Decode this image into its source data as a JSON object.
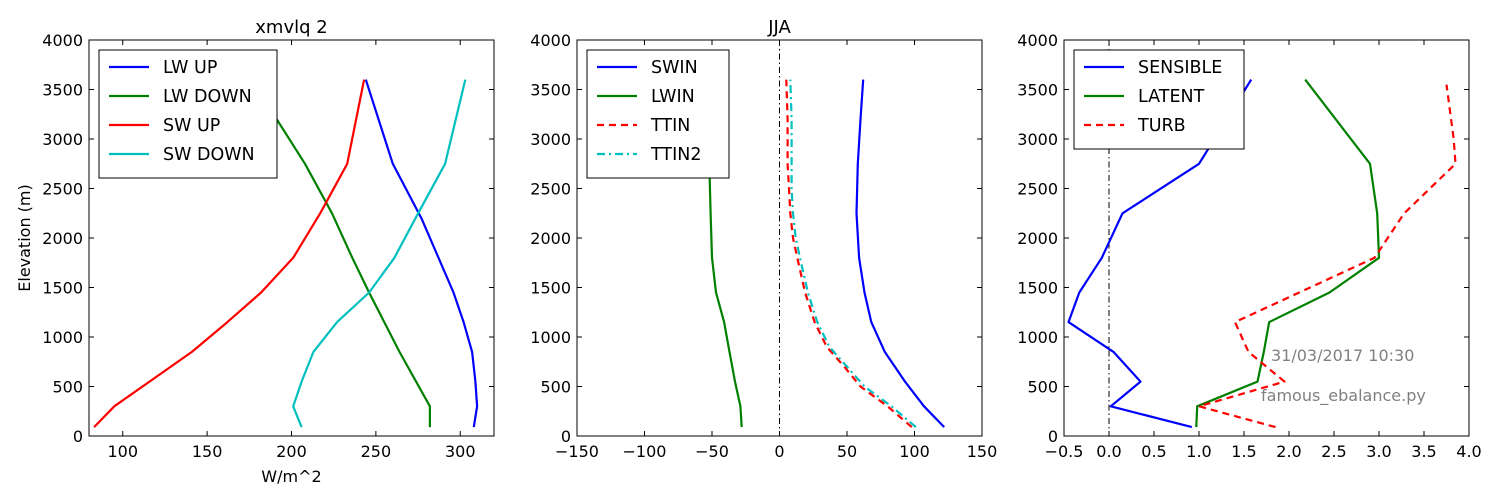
{
  "chart_data": [
    {
      "type": "line",
      "title": "xmvlq 2",
      "xlabel": "W/m^2",
      "ylabel": "Elevation (m)",
      "xlim": [
        80,
        320
      ],
      "ylim": [
        0,
        4000
      ],
      "xticks": [
        "100",
        "150",
        "200",
        "250",
        "300"
      ],
      "xtick_values": [
        100,
        150,
        200,
        250,
        300
      ],
      "yticks": [
        "0",
        "500",
        "1000",
        "1500",
        "2000",
        "2500",
        "3000",
        "3500",
        "4000"
      ],
      "ytick_values": [
        0,
        500,
        1000,
        1500,
        2000,
        2500,
        3000,
        3500,
        4000
      ],
      "legend_position": "upper-left",
      "series": [
        {
          "name": "LW UP",
          "color": "#0000ff",
          "style": "solid",
          "x": [
            308,
            310,
            309,
            307,
            302,
            296,
            277,
            260,
            244
          ],
          "y": [
            90,
            300,
            550,
            850,
            1150,
            1450,
            2200,
            2750,
            3600
          ]
        },
        {
          "name": "LW DOWN",
          "color": "#008000",
          "style": "solid",
          "x": [
            282,
            282,
            264,
            246,
            236,
            224,
            208,
            180
          ],
          "y": [
            90,
            300,
            850,
            1450,
            1800,
            2250,
            2750,
            3500
          ]
        },
        {
          "name": "SW UP",
          "color": "#ff0000",
          "style": "solid",
          "x": [
            83,
            95,
            141,
            162,
            182,
            201,
            217,
            233,
            243
          ],
          "y": [
            90,
            300,
            850,
            1150,
            1450,
            1800,
            2250,
            2750,
            3600
          ]
        },
        {
          "name": "SW DOWN",
          "color": "#00bfbf",
          "style": "solid",
          "x": [
            206,
            201,
            206,
            213,
            227,
            246,
            261,
            275,
            291,
            303
          ],
          "y": [
            90,
            300,
            550,
            850,
            1150,
            1450,
            1800,
            2250,
            2750,
            3600
          ]
        }
      ]
    },
    {
      "type": "line",
      "title": "JJA",
      "xlabel": "",
      "ylabel": "",
      "xlim": [
        -150,
        150
      ],
      "ylim": [
        0,
        4000
      ],
      "xticks": [
        "−150",
        "−100",
        "−50",
        "0",
        "50",
        "100",
        "150"
      ],
      "xtick_values": [
        -150,
        -100,
        -50,
        0,
        50,
        100,
        150
      ],
      "yticks": [
        "0",
        "500",
        "1000",
        "1500",
        "2000",
        "2500",
        "3000",
        "3500",
        "4000"
      ],
      "ytick_values": [
        0,
        500,
        1000,
        1500,
        2000,
        2500,
        3000,
        3500,
        4000
      ],
      "legend_position": "upper-left",
      "vline_x": 0,
      "series": [
        {
          "name": "SWIN",
          "color": "#0000ff",
          "style": "solid",
          "x": [
            122,
            107,
            93,
            78,
            68,
            63,
            59,
            57,
            58,
            60,
            62
          ],
          "y": [
            90,
            300,
            550,
            850,
            1150,
            1450,
            1800,
            2250,
            2750,
            3200,
            3600
          ]
        },
        {
          "name": "LWIN",
          "color": "#008000",
          "style": "solid",
          "x": [
            -28,
            -29,
            -33,
            -37,
            -41,
            -47,
            -50,
            -51,
            -52,
            -53
          ],
          "y": [
            90,
            300,
            550,
            850,
            1150,
            1450,
            1800,
            2250,
            2750,
            3000
          ]
        },
        {
          "name": "TTIN",
          "color": "#ff0000",
          "style": "dashed",
          "x": [
            98,
            80,
            60,
            48,
            35,
            26,
            19,
            14,
            10,
            8,
            7,
            6,
            6,
            5
          ],
          "y": [
            90,
            300,
            500,
            700,
            900,
            1150,
            1450,
            1750,
            2000,
            2250,
            2500,
            2750,
            3200,
            3600
          ]
        },
        {
          "name": "TTIN2",
          "color": "#00bfbf",
          "style": "dashdot",
          "x": [
            101,
            83,
            63,
            50,
            37,
            28,
            21,
            16,
            12,
            10,
            9,
            9,
            9,
            8
          ],
          "y": [
            90,
            300,
            500,
            700,
            900,
            1150,
            1450,
            1750,
            2000,
            2250,
            2500,
            2750,
            3200,
            3600
          ]
        }
      ]
    },
    {
      "type": "line",
      "title": "",
      "xlabel": "",
      "ylabel": "",
      "xlim": [
        -0.5,
        4.0
      ],
      "ylim": [
        0,
        4000
      ],
      "xticks": [
        "−0.5",
        "0.0",
        "0.5",
        "1.0",
        "1.5",
        "2.0",
        "2.5",
        "3.0",
        "3.5",
        "4.0"
      ],
      "xtick_values": [
        -0.5,
        0.0,
        0.5,
        1.0,
        1.5,
        2.0,
        2.5,
        3.0,
        3.5,
        4.0
      ],
      "yticks": [
        "0",
        "500",
        "1000",
        "1500",
        "2000",
        "2500",
        "3000",
        "3500",
        "4000"
      ],
      "ytick_values": [
        0,
        500,
        1000,
        1500,
        2000,
        2500,
        3000,
        3500,
        4000
      ],
      "legend_position": "upper-left",
      "vline_x": 0,
      "series": [
        {
          "name": "SENSIBLE",
          "color": "#0000ff",
          "style": "solid",
          "x": [
            0.92,
            0.02,
            0.35,
            0.05,
            -0.45,
            -0.33,
            -0.08,
            0.15,
            1.0,
            1.58
          ],
          "y": [
            90,
            300,
            550,
            850,
            1150,
            1450,
            1800,
            2250,
            2750,
            3600
          ]
        },
        {
          "name": "LATENT",
          "color": "#008000",
          "style": "solid",
          "x": [
            0.97,
            0.98,
            1.65,
            1.72,
            1.78,
            2.45,
            3.0,
            2.98,
            2.9,
            2.18
          ],
          "y": [
            90,
            300,
            550,
            850,
            1150,
            1450,
            1800,
            2250,
            2750,
            3600
          ]
        },
        {
          "name": "TURB",
          "color": "#ff0000",
          "style": "dashed",
          "x": [
            1.85,
            1.0,
            1.95,
            1.55,
            1.4,
            2.95,
            3.28,
            3.85,
            3.83,
            3.75
          ],
          "y": [
            90,
            300,
            550,
            850,
            1150,
            1800,
            2250,
            2750,
            3000,
            3550
          ]
        }
      ]
    }
  ],
  "annotations": {
    "timestamp": "31/03/2017 10:30",
    "script_name": "famous_ebalance.py"
  }
}
